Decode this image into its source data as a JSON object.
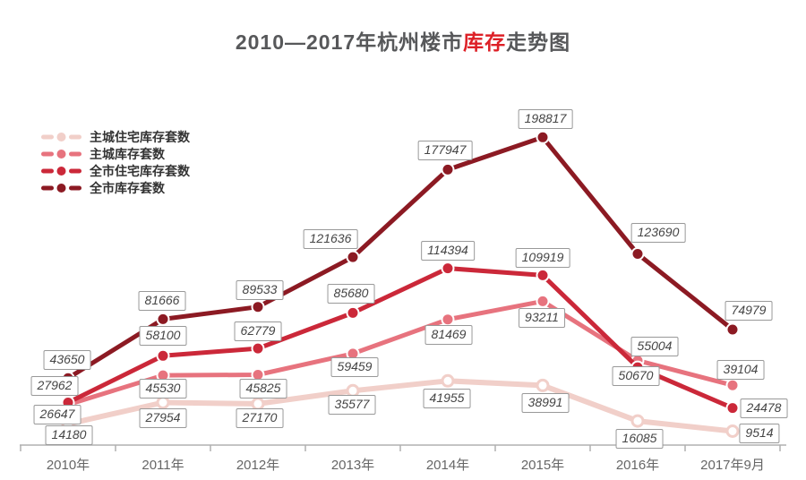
{
  "title": {
    "prefix": "2010—2017年杭州楼市",
    "highlight": "库存",
    "suffix": "走势图",
    "highlight_color": "#dd2027",
    "base_color": "#57585a"
  },
  "colors": {
    "background": "#ffffff",
    "axis": "#b0b0b0",
    "axis_text": "#666666",
    "label_border": "#999999",
    "label_text": "#454545"
  },
  "chart_data": {
    "type": "line",
    "title": "2010—2017年杭州楼市库存走势图",
    "categories": [
      "2010年",
      "2011年",
      "2012年",
      "2013年",
      "2014年",
      "2015年",
      "2016年",
      "2017年9月"
    ],
    "series": [
      {
        "name": "主城住宅库存套数",
        "color": "#f1cfc9",
        "values": [
          14180,
          27954,
          27170,
          35577,
          41955,
          38991,
          16085,
          9514
        ]
      },
      {
        "name": "主城库存套数",
        "color": "#e7737e",
        "values": [
          26647,
          45530,
          45825,
          59459,
          81469,
          93211,
          55004,
          39104
        ]
      },
      {
        "name": "全市住宅库存套数",
        "color": "#cb2839",
        "values": [
          27962,
          58100,
          62779,
          85680,
          114394,
          109919,
          50670,
          24478
        ]
      },
      {
        "name": "全市库存套数",
        "color": "#8c1a23",
        "values": [
          43650,
          81666,
          89533,
          121636,
          177947,
          198817,
          123690,
          74979
        ]
      }
    ],
    "xlabel": "",
    "ylabel": "",
    "ylim": [
      0,
      206000
    ],
    "grid": false,
    "y_axis_visible": false,
    "legend_position": "top-left",
    "data_labels": true
  }
}
